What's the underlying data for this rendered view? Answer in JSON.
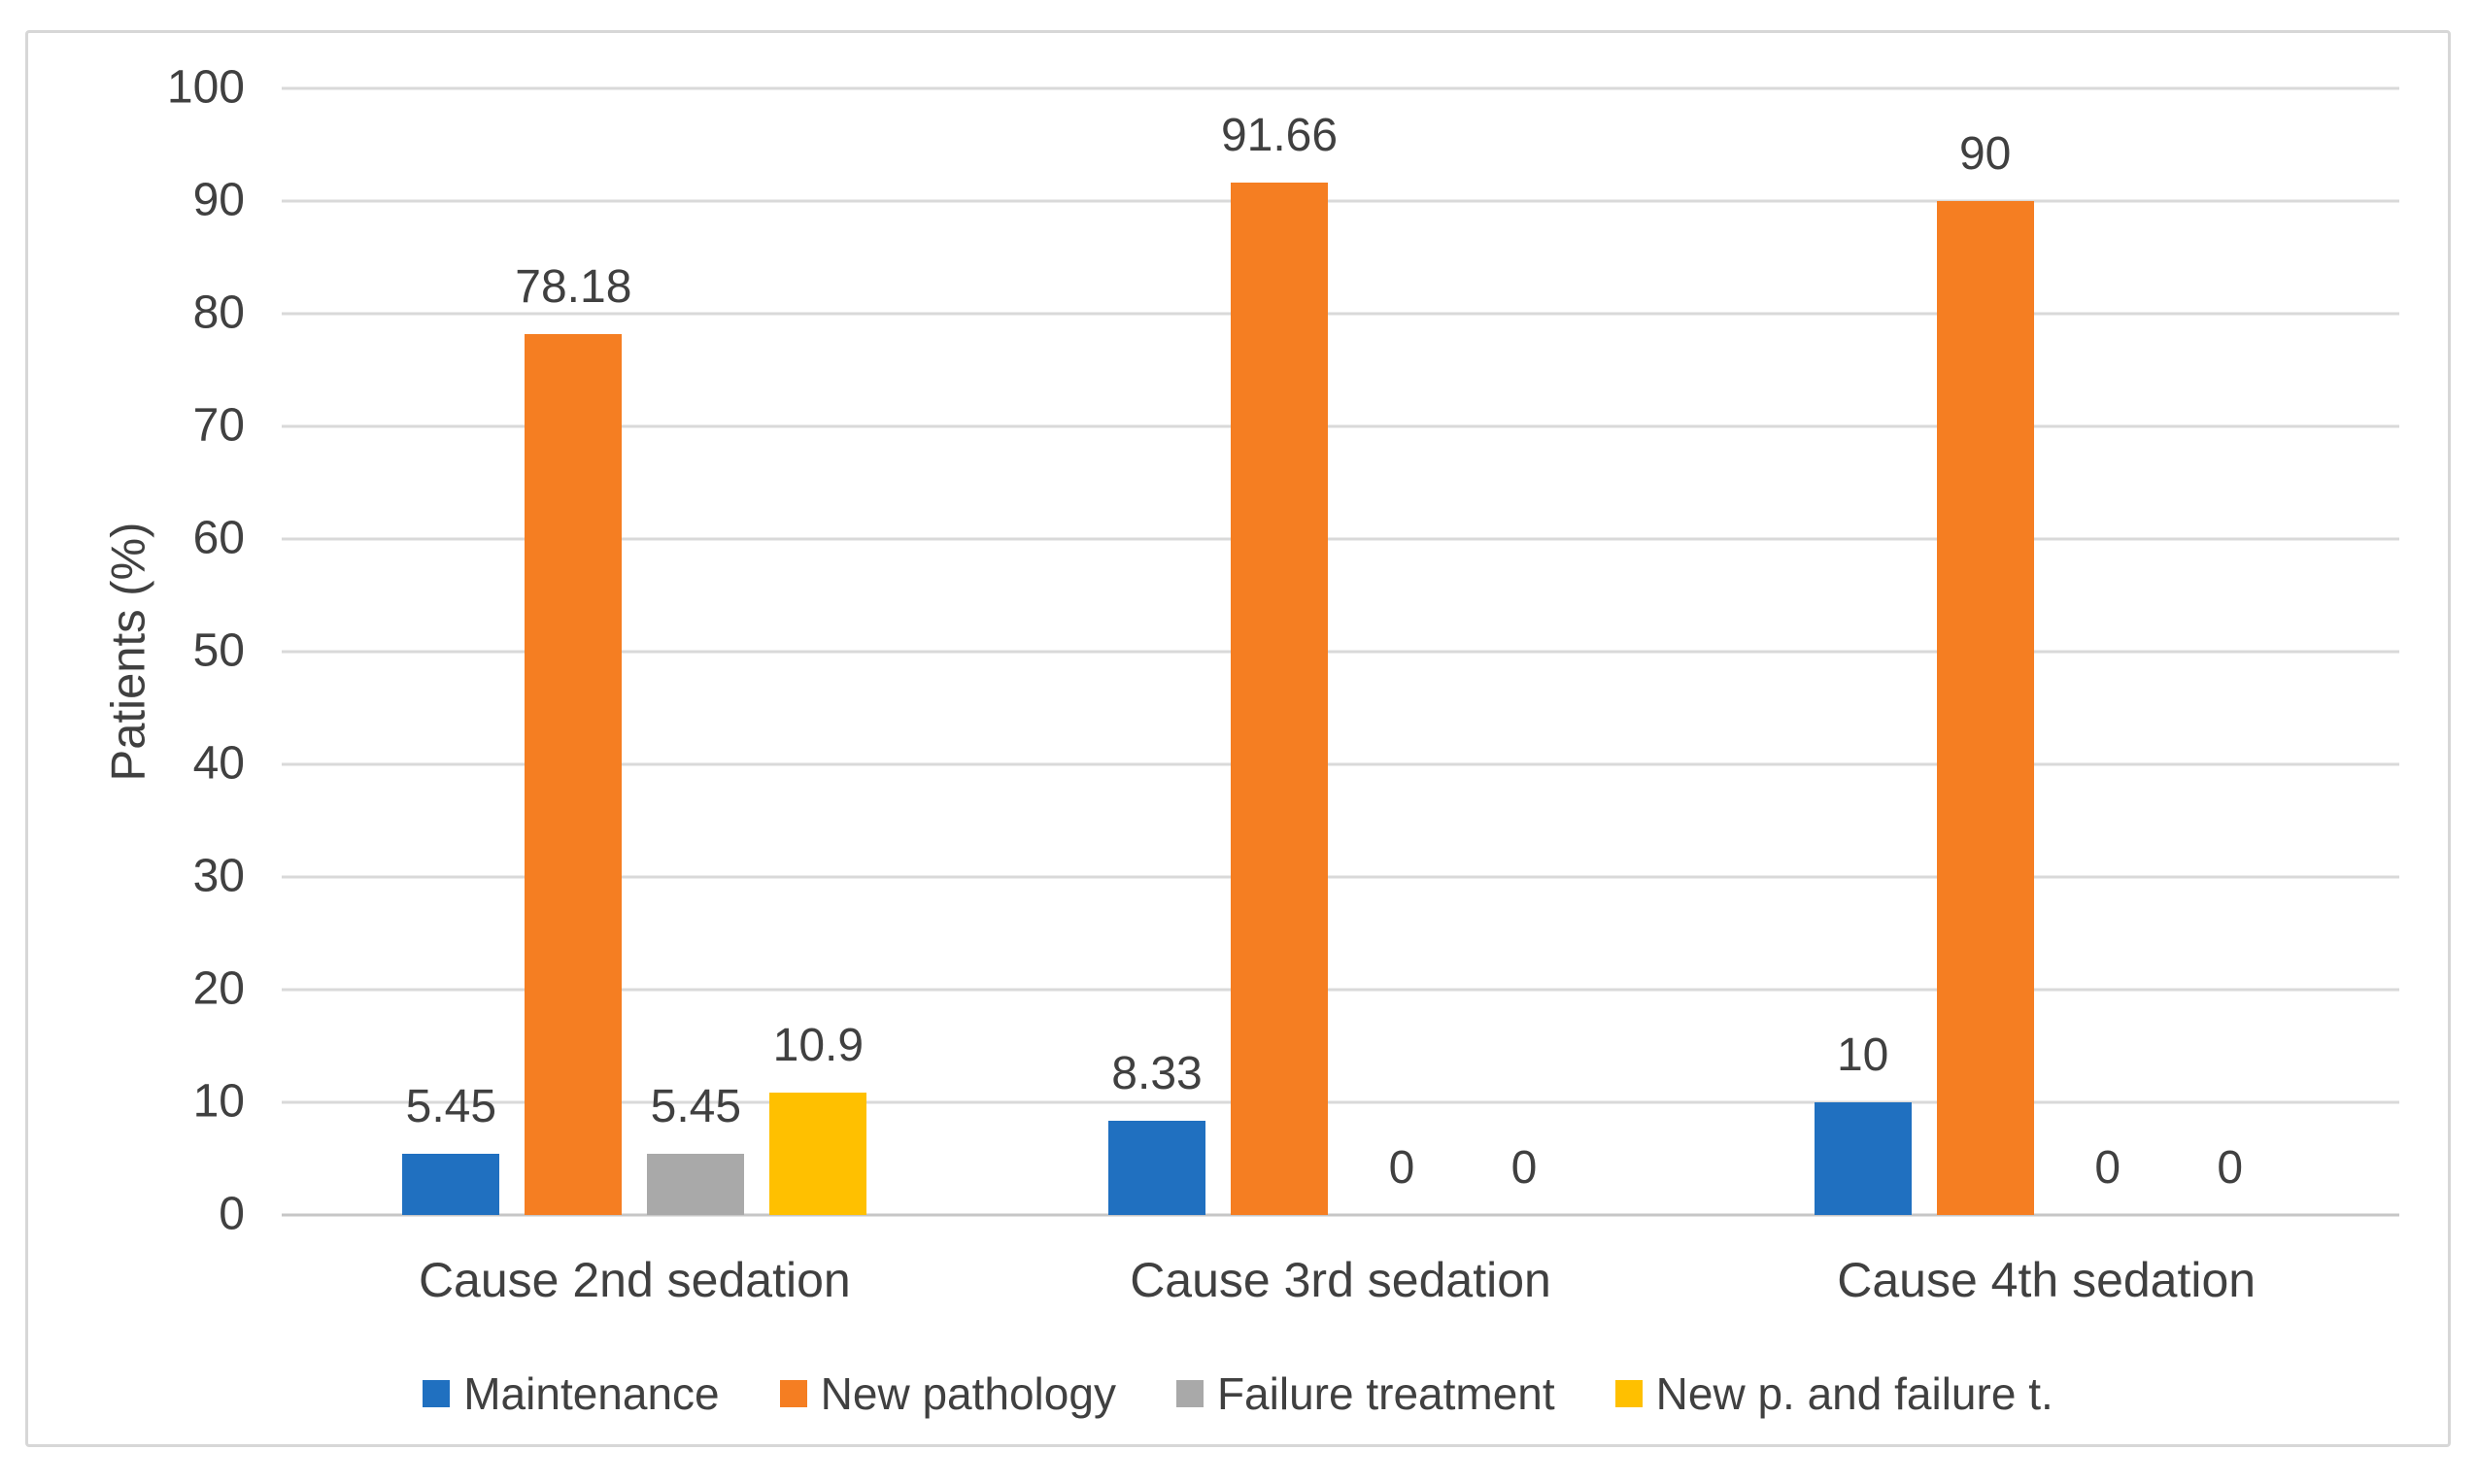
{
  "chart_data": {
    "type": "bar",
    "title": "",
    "ylabel": "Patients (%)",
    "xlabel": "",
    "ylim": [
      0,
      100
    ],
    "ytick_step": 10,
    "grid": true,
    "legend_position": "bottom",
    "categories": [
      "Cause 2nd sedation",
      "Cause 3rd sedation",
      "Cause 4th sedation"
    ],
    "series": [
      {
        "name": "Maintenance",
        "color": "#2070c0",
        "values": [
          5.45,
          8.33,
          10
        ],
        "labels": [
          "5.45",
          "8.33",
          "10"
        ]
      },
      {
        "name": "New pathology",
        "color": "#f57e22",
        "values": [
          78.18,
          91.66,
          90
        ],
        "labels": [
          "78.18",
          "91.66",
          "90"
        ]
      },
      {
        "name": "Failure treatment",
        "color": "#a9a9a9",
        "values": [
          5.45,
          0,
          0
        ],
        "labels": [
          "5.45",
          "0",
          "0"
        ]
      },
      {
        "name": "New p. and failure t.",
        "color": "#ffc000",
        "values": [
          10.9,
          0,
          0
        ],
        "labels": [
          "10.9",
          "0",
          "0"
        ]
      }
    ],
    "colors": {
      "gridline": "#d9d9d9",
      "baseline": "#c6c6c6",
      "frame_border": "#d7d7d7",
      "text": "#404040",
      "background": "#ffffff"
    }
  }
}
